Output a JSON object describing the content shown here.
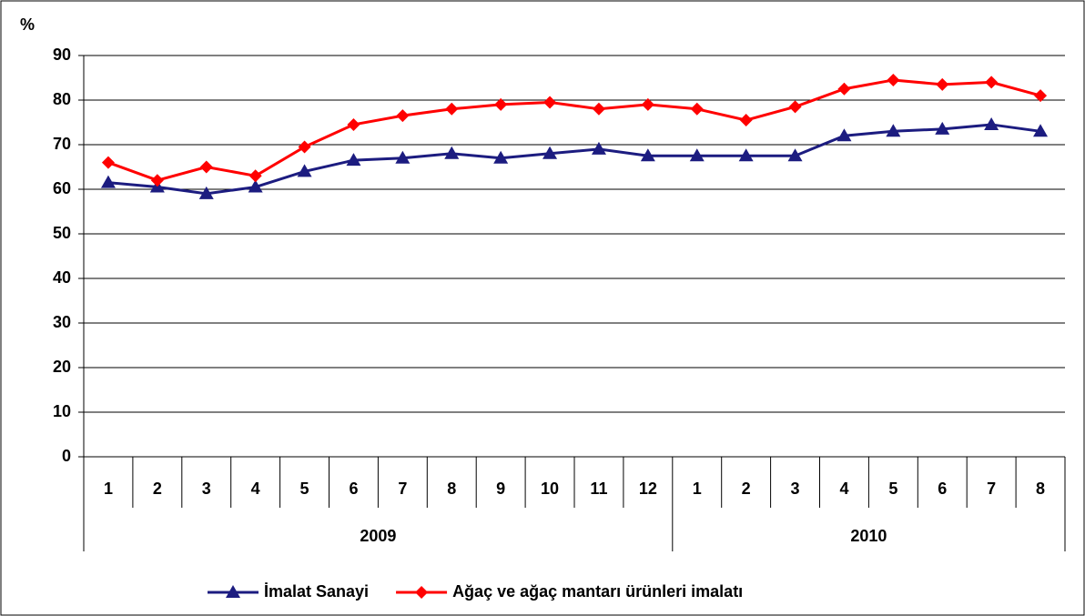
{
  "chart_data": {
    "type": "line",
    "y_label": "%",
    "groups": [
      {
        "label": "2009",
        "categories": [
          "1",
          "2",
          "3",
          "4",
          "5",
          "6",
          "7",
          "8",
          "9",
          "10",
          "11",
          "12"
        ]
      },
      {
        "label": "2010",
        "categories": [
          "1",
          "2",
          "3",
          "4",
          "5",
          "6",
          "7",
          "8"
        ]
      }
    ],
    "series": [
      {
        "name": "İmalat Sanayi",
        "color": "#1c1c80",
        "marker": "triangle",
        "values": [
          61.5,
          60.5,
          59,
          60.5,
          64,
          66.5,
          67,
          68,
          67,
          68,
          69,
          67.5,
          67.5,
          67.5,
          67.5,
          72,
          73,
          73.5,
          74.5,
          73
        ]
      },
      {
        "name": "Ağaç ve ağaç mantarı ürünleri imalatı",
        "color": "#ff0000",
        "marker": "diamond",
        "values": [
          66,
          62,
          65,
          63,
          69.5,
          74.5,
          76.5,
          78,
          79,
          79.5,
          78,
          79,
          78,
          75.5,
          78.5,
          82.5,
          84.5,
          83.5,
          84,
          81
        ]
      }
    ],
    "ylim": [
      0,
      90
    ],
    "yticks": [
      0,
      10,
      20,
      30,
      40,
      50,
      60,
      70,
      80,
      90
    ],
    "grid": true,
    "legend": "bottom"
  }
}
